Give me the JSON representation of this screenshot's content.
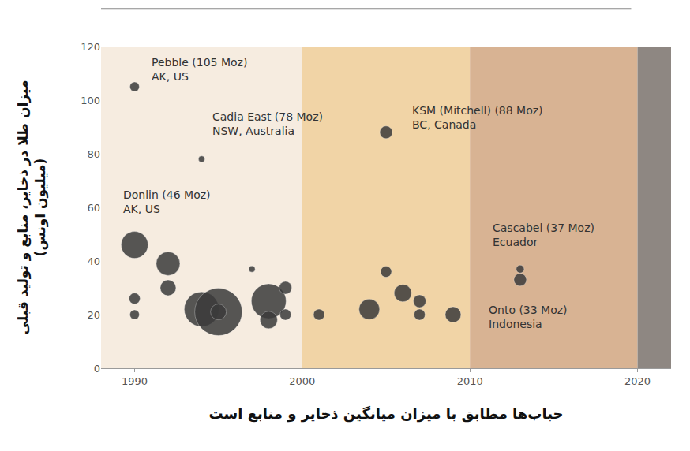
{
  "chart_data": {
    "type": "scatter",
    "marker": "circle",
    "color": "#3b3b3b",
    "x_label": "حباب‌ها مطابق با میزان میانگین ذخایر و منابع است",
    "y_label": "میزان طلا در ذخایر، منابع و تولید قبلی\n(میلیون اونس)",
    "x": [
      1990,
      1994,
      1990,
      1992,
      1992,
      1990,
      1990,
      1994,
      1995,
      1995,
      1997,
      1998,
      1998,
      1999,
      1999,
      2001,
      2004,
      2005,
      2005,
      2006,
      2007,
      2007,
      2009,
      2013,
      2013
    ],
    "values": [
      105,
      78,
      46,
      39,
      30,
      26,
      20,
      22,
      21,
      21,
      37,
      25,
      18,
      30,
      20,
      20,
      22,
      88,
      36,
      28,
      25,
      20,
      20,
      37,
      33
    ],
    "sizes": [
      12,
      8,
      34,
      30,
      20,
      14,
      12,
      44,
      60,
      20,
      8,
      44,
      22,
      16,
      14,
      14,
      26,
      16,
      14,
      22,
      16,
      14,
      20,
      10,
      16
    ],
    "labels": [
      "Pebble (105 Moz)\nAK, US",
      "Cadia East (78 Moz)\nNSW, Australia",
      "Donlin (46 Moz)\nAK, US",
      null,
      null,
      null,
      null,
      null,
      null,
      null,
      null,
      null,
      null,
      null,
      null,
      null,
      null,
      "KSM (Mitchell) (88 Moz)\nBC, Canada",
      null,
      null,
      null,
      null,
      null,
      "Cascabel (37 Moz)\nEcuador",
      "Onto (33 Moz)\nIndonesia"
    ],
    "bands": [
      {
        "x0": 1988,
        "x1": 2000,
        "color": "#f6ece0"
      },
      {
        "x0": 2000,
        "x1": 2010,
        "color": "#f1d4a6"
      },
      {
        "x0": 2010,
        "x1": 2020,
        "color": "#d8b393"
      },
      {
        "x0": 2020,
        "x1": 2022,
        "color": "#8e8782"
      }
    ],
    "xlim": [
      1988,
      2022
    ],
    "xticks": [
      1990,
      2000,
      2010,
      2020
    ],
    "ylim": [
      0,
      120
    ],
    "yticks": [
      0,
      20,
      40,
      60,
      80,
      100,
      120
    ],
    "grid": false
  }
}
